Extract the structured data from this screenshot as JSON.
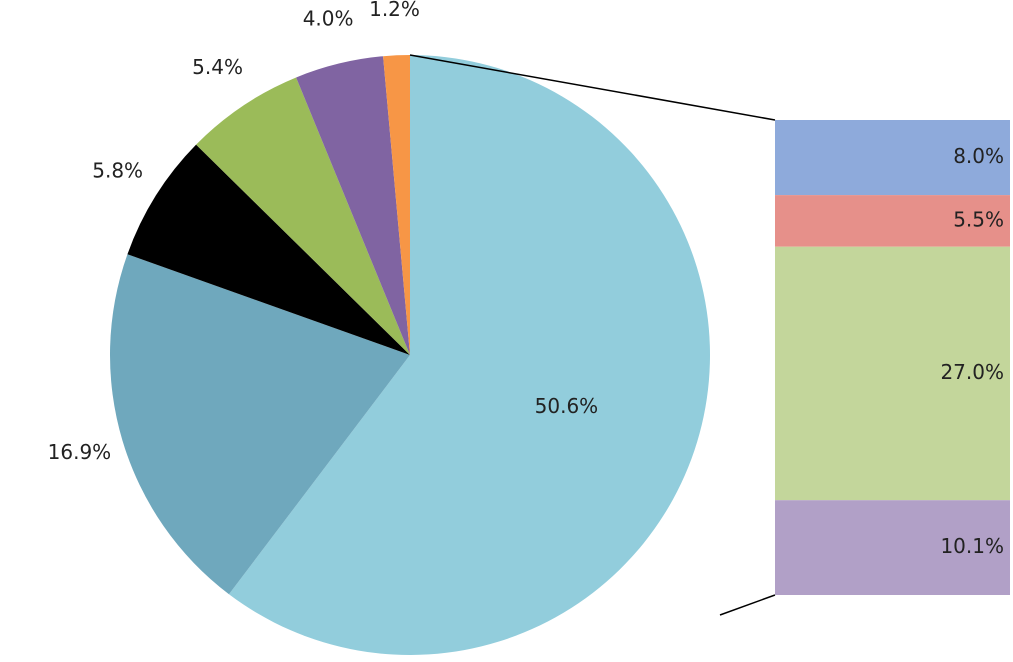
{
  "chart_data": {
    "type": "pie",
    "values": [
      50.6,
      16.9,
      5.8,
      5.4,
      4.0,
      1.2
    ],
    "value_labels": [
      "50.6%",
      "16.9%",
      "5.8%",
      "5.4%",
      "4.0%",
      "1.2%"
    ],
    "colors": [
      "#92cddc",
      "#6fa8bd",
      "#000000",
      "#9bbb59",
      "#8064a2",
      "#f79646"
    ],
    "bar": {
      "values": [
        8.0,
        5.5,
        27.0,
        10.1
      ],
      "value_labels": [
        "8.0%",
        "5.5%",
        "27.0%",
        "10.1%"
      ],
      "colors": [
        "#8eaadb",
        "#e6908a",
        "#c3d69b",
        "#b1a0c7"
      ]
    }
  }
}
